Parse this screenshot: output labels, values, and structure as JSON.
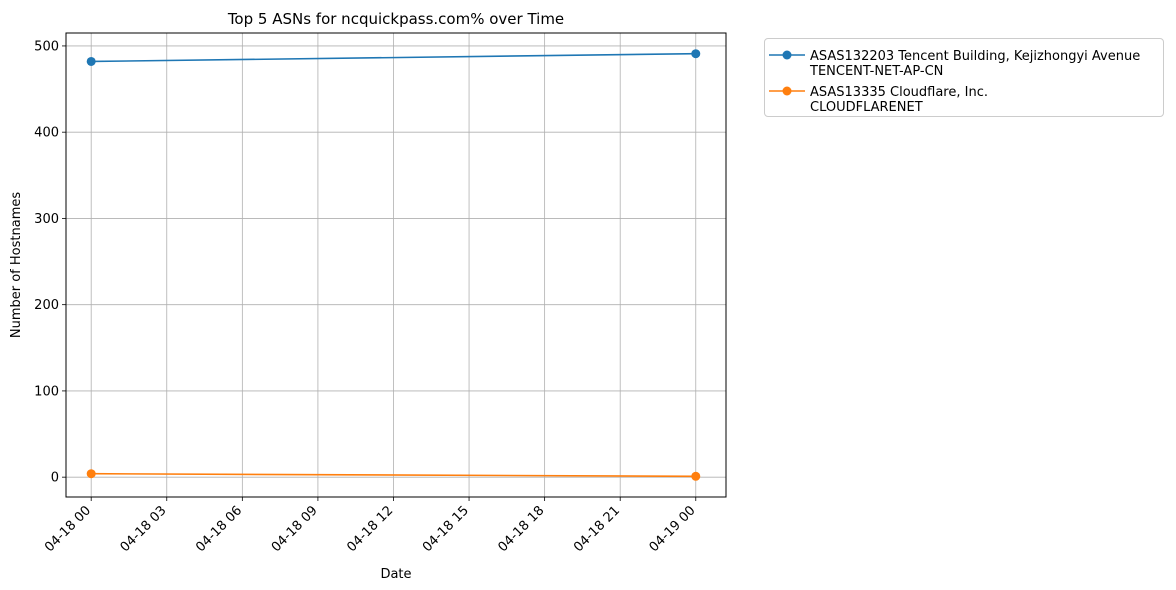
{
  "chart_data": {
    "type": "line",
    "title": "Top 5 ASNs for ncquickpass.com% over Time",
    "xlabel": "Date",
    "ylabel": "Number of Hostnames",
    "xlim": [
      "2024-04-17T23:00",
      "2024-04-19T01:12"
    ],
    "ylim": [
      -23,
      515
    ],
    "x_ticks": [
      "04-18 00",
      "04-18 03",
      "04-18 06",
      "04-18 09",
      "04-18 12",
      "04-18 15",
      "04-18 18",
      "04-18 21",
      "04-19 00"
    ],
    "x_tick_values": [
      "2024-04-18T00:00",
      "2024-04-18T03:00",
      "2024-04-18T06:00",
      "2024-04-18T09:00",
      "2024-04-18T12:00",
      "2024-04-18T15:00",
      "2024-04-18T18:00",
      "2024-04-18T21:00",
      "2024-04-19T00:00"
    ],
    "y_ticks": [
      0,
      100,
      200,
      300,
      400,
      500
    ],
    "grid": true,
    "legend_position": "outside-top-right",
    "series": [
      {
        "name": "ASAS132203 Tencent Building, Kejizhongyi Avenue\nTENCENT-NET-AP-CN",
        "color": "#1f77b4",
        "marker": "circle",
        "x": [
          "2024-04-18T00:00",
          "2024-04-19T00:00"
        ],
        "values": [
          482,
          491
        ]
      },
      {
        "name": "ASAS13335 Cloudflare, Inc.\nCLOUDFLARENET",
        "color": "#ff7f0e",
        "marker": "circle",
        "x": [
          "2024-04-18T00:00",
          "2024-04-19T00:00"
        ],
        "values": [
          4,
          1
        ]
      }
    ]
  }
}
